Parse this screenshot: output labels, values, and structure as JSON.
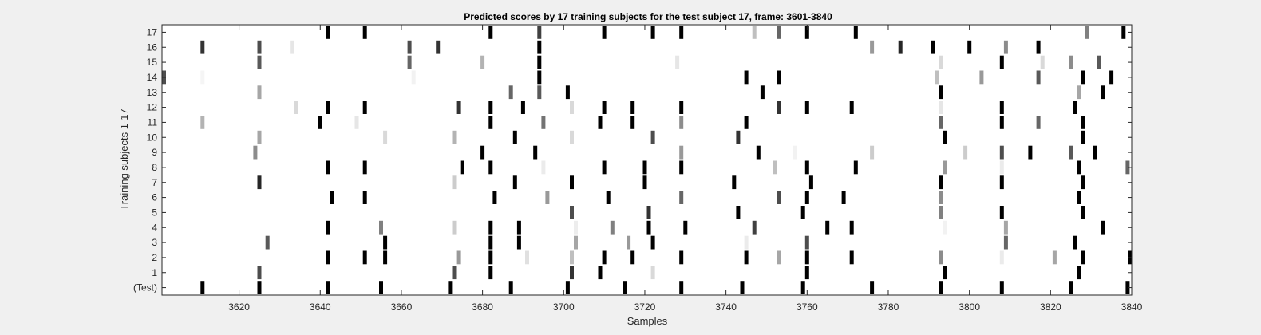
{
  "chart_data": {
    "type": "heatmap",
    "title": "Predicted scores by 17 training subjects for the test subject 17, frame: 3601-3840",
    "xlabel": "Samples",
    "ylabel": "Training subjects 1-17",
    "xlim": [
      3601,
      3840
    ],
    "x_ticks": [
      3620,
      3640,
      3660,
      3680,
      3700,
      3720,
      3740,
      3760,
      3780,
      3800,
      3820,
      3840
    ],
    "row_labels": [
      "(Test)",
      "1",
      "2",
      "3",
      "4",
      "5",
      "6",
      "7",
      "8",
      "9",
      "10",
      "11",
      "12",
      "13",
      "14",
      "15",
      "16",
      "17"
    ],
    "colormap": "gray-inverted (white = 0, black = 1)",
    "rows": [
      {
        "label": "(Test)",
        "marks": [
          [
            3611,
            1
          ],
          [
            3625,
            1
          ],
          [
            3642,
            1
          ],
          [
            3655,
            1
          ],
          [
            3672,
            1
          ],
          [
            3687,
            1
          ],
          [
            3701,
            1
          ],
          [
            3715,
            1
          ],
          [
            3729,
            1
          ],
          [
            3744,
            1
          ],
          [
            3759,
            1
          ],
          [
            3776,
            1
          ],
          [
            3793,
            1
          ],
          [
            3808,
            1
          ],
          [
            3825,
            1
          ],
          [
            3839,
            1
          ]
        ]
      },
      {
        "label": "1",
        "marks": [
          [
            3625,
            0.7
          ],
          [
            3673,
            0.7
          ],
          [
            3682,
            1
          ],
          [
            3702,
            0.8
          ],
          [
            3709,
            1
          ],
          [
            3722,
            0.15
          ],
          [
            3760,
            1
          ],
          [
            3794,
            1
          ],
          [
            3827,
            1
          ]
        ]
      },
      {
        "label": "2",
        "marks": [
          [
            3642,
            1
          ],
          [
            3651,
            1
          ],
          [
            3656,
            1
          ],
          [
            3674,
            0.4
          ],
          [
            3682,
            1
          ],
          [
            3691,
            0.12
          ],
          [
            3702,
            0.25
          ],
          [
            3710,
            1
          ],
          [
            3717,
            1
          ],
          [
            3729,
            1
          ],
          [
            3745,
            1
          ],
          [
            3753,
            0.35
          ],
          [
            3760,
            1
          ],
          [
            3771,
            1
          ],
          [
            3793,
            0.45
          ],
          [
            3808,
            0.08
          ],
          [
            3821,
            0.35
          ],
          [
            3828,
            1
          ],
          [
            3840,
            1
          ]
        ]
      },
      {
        "label": "3",
        "marks": [
          [
            3627,
            0.65
          ],
          [
            3656,
            1
          ],
          [
            3682,
            1
          ],
          [
            3689,
            1
          ],
          [
            3703,
            0.35
          ],
          [
            3716,
            0.4
          ],
          [
            3722,
            1
          ],
          [
            3745,
            0.08
          ],
          [
            3760,
            0.7
          ],
          [
            3809,
            0.6
          ],
          [
            3826,
            1
          ]
        ]
      },
      {
        "label": "4",
        "marks": [
          [
            3642,
            1
          ],
          [
            3655,
            0.5
          ],
          [
            3673,
            0.2
          ],
          [
            3682,
            1
          ],
          [
            3689,
            1
          ],
          [
            3703,
            0.07
          ],
          [
            3712,
            0.5
          ],
          [
            3721,
            1
          ],
          [
            3730,
            1
          ],
          [
            3747,
            0.75
          ],
          [
            3765,
            1
          ],
          [
            3771,
            1
          ],
          [
            3794,
            0.05
          ],
          [
            3809,
            0.35
          ],
          [
            3833,
            1
          ]
        ]
      },
      {
        "label": "5",
        "marks": [
          [
            3702,
            0.7
          ],
          [
            3721,
            0.8
          ],
          [
            3743,
            1
          ],
          [
            3759,
            1
          ],
          [
            3793,
            0.5
          ],
          [
            3808,
            1
          ],
          [
            3828,
            1
          ]
        ]
      },
      {
        "label": "6",
        "marks": [
          [
            3643,
            1
          ],
          [
            3651,
            1
          ],
          [
            3683,
            1
          ],
          [
            3696,
            0.4
          ],
          [
            3711,
            1
          ],
          [
            3729,
            0.6
          ],
          [
            3753,
            0.7
          ],
          [
            3760,
            1
          ],
          [
            3769,
            1
          ],
          [
            3793,
            0.45
          ],
          [
            3827,
            1
          ]
        ]
      },
      {
        "label": "7",
        "marks": [
          [
            3625,
            0.85
          ],
          [
            3673,
            0.2
          ],
          [
            3688,
            1
          ],
          [
            3702,
            1
          ],
          [
            3720,
            1
          ],
          [
            3742,
            1
          ],
          [
            3761,
            1
          ],
          [
            3793,
            1
          ],
          [
            3808,
            1
          ],
          [
            3828,
            1
          ]
        ]
      },
      {
        "label": "8",
        "marks": [
          [
            3642,
            1
          ],
          [
            3651,
            1
          ],
          [
            3675,
            1
          ],
          [
            3682,
            1
          ],
          [
            3695,
            0.08
          ],
          [
            3710,
            1
          ],
          [
            3720,
            1
          ],
          [
            3729,
            1
          ],
          [
            3752,
            0.25
          ],
          [
            3760,
            1
          ],
          [
            3772,
            1
          ],
          [
            3794,
            0.4
          ],
          [
            3808,
            0.08
          ],
          [
            3827,
            1
          ],
          [
            3839,
            0.6
          ]
        ]
      },
      {
        "label": "9",
        "marks": [
          [
            3624,
            0.45
          ],
          [
            3680,
            1
          ],
          [
            3693,
            1
          ],
          [
            3729,
            0.4
          ],
          [
            3748,
            1
          ],
          [
            3757,
            0.05
          ],
          [
            3776,
            0.2
          ],
          [
            3799,
            0.2
          ],
          [
            3808,
            0.7
          ],
          [
            3815,
            1
          ],
          [
            3825,
            0.65
          ],
          [
            3831,
            1
          ]
        ]
      },
      {
        "label": "10",
        "marks": [
          [
            3625,
            0.35
          ],
          [
            3656,
            0.15
          ],
          [
            3673,
            0.3
          ],
          [
            3688,
            1
          ],
          [
            3702,
            0.15
          ],
          [
            3722,
            0.7
          ],
          [
            3743,
            0.8
          ],
          [
            3794,
            1
          ],
          [
            3828,
            1
          ]
        ]
      },
      {
        "label": "11",
        "marks": [
          [
            3611,
            0.3
          ],
          [
            3640,
            1
          ],
          [
            3649,
            0.1
          ],
          [
            3682,
            1
          ],
          [
            3695,
            0.55
          ],
          [
            3709,
            1
          ],
          [
            3717,
            1
          ],
          [
            3729,
            0.45
          ],
          [
            3745,
            1
          ],
          [
            3793,
            0.6
          ],
          [
            3808,
            1
          ],
          [
            3817,
            0.6
          ],
          [
            3828,
            1
          ]
        ]
      },
      {
        "label": "12",
        "marks": [
          [
            3634,
            0.15
          ],
          [
            3642,
            1
          ],
          [
            3651,
            1
          ],
          [
            3674,
            0.8
          ],
          [
            3682,
            1
          ],
          [
            3690,
            1
          ],
          [
            3702,
            0.15
          ],
          [
            3710,
            1
          ],
          [
            3717,
            1
          ],
          [
            3729,
            1
          ],
          [
            3753,
            0.8
          ],
          [
            3760,
            1
          ],
          [
            3771,
            1
          ],
          [
            3793,
            0.1
          ],
          [
            3808,
            1
          ],
          [
            3826,
            1
          ]
        ]
      },
      {
        "label": "13",
        "marks": [
          [
            3625,
            0.35
          ],
          [
            3687,
            0.6
          ],
          [
            3694,
            0.65
          ],
          [
            3701,
            1
          ],
          [
            3749,
            1
          ],
          [
            3793,
            1
          ],
          [
            3827,
            0.35
          ],
          [
            3833,
            1
          ]
        ]
      },
      {
        "label": "14",
        "marks": [
          [
            3601,
            0.7
          ],
          [
            3611,
            0.04
          ],
          [
            3663,
            0.05
          ],
          [
            3694,
            1
          ],
          [
            3745,
            1
          ],
          [
            3753,
            1
          ],
          [
            3792,
            0.25
          ],
          [
            3803,
            0.4
          ],
          [
            3817,
            0.65
          ],
          [
            3828,
            1
          ],
          [
            3835,
            1
          ]
        ]
      },
      {
        "label": "15",
        "marks": [
          [
            3625,
            0.65
          ],
          [
            3662,
            0.6
          ],
          [
            3680,
            0.3
          ],
          [
            3694,
            1
          ],
          [
            3728,
            0.1
          ],
          [
            3793,
            0.15
          ],
          [
            3808,
            1
          ],
          [
            3818,
            0.15
          ],
          [
            3825,
            0.45
          ],
          [
            3832,
            0.65
          ]
        ]
      },
      {
        "label": "16",
        "marks": [
          [
            3611,
            0.8
          ],
          [
            3625,
            0.7
          ],
          [
            3633,
            0.1
          ],
          [
            3662,
            0.7
          ],
          [
            3669,
            0.8
          ],
          [
            3694,
            1
          ],
          [
            3776,
            0.4
          ],
          [
            3783,
            0.85
          ],
          [
            3791,
            1
          ],
          [
            3800,
            1
          ],
          [
            3809,
            0.45
          ],
          [
            3817,
            1
          ]
        ]
      },
      {
        "label": "17",
        "marks": [
          [
            3642,
            1
          ],
          [
            3651,
            1
          ],
          [
            3682,
            1
          ],
          [
            3694,
            0.75
          ],
          [
            3710,
            1
          ],
          [
            3722,
            1
          ],
          [
            3729,
            1
          ],
          [
            3747,
            0.25
          ],
          [
            3753,
            0.6
          ],
          [
            3760,
            1
          ],
          [
            3772,
            1
          ],
          [
            3829,
            0.5
          ],
          [
            3838,
            1
          ]
        ]
      }
    ]
  }
}
